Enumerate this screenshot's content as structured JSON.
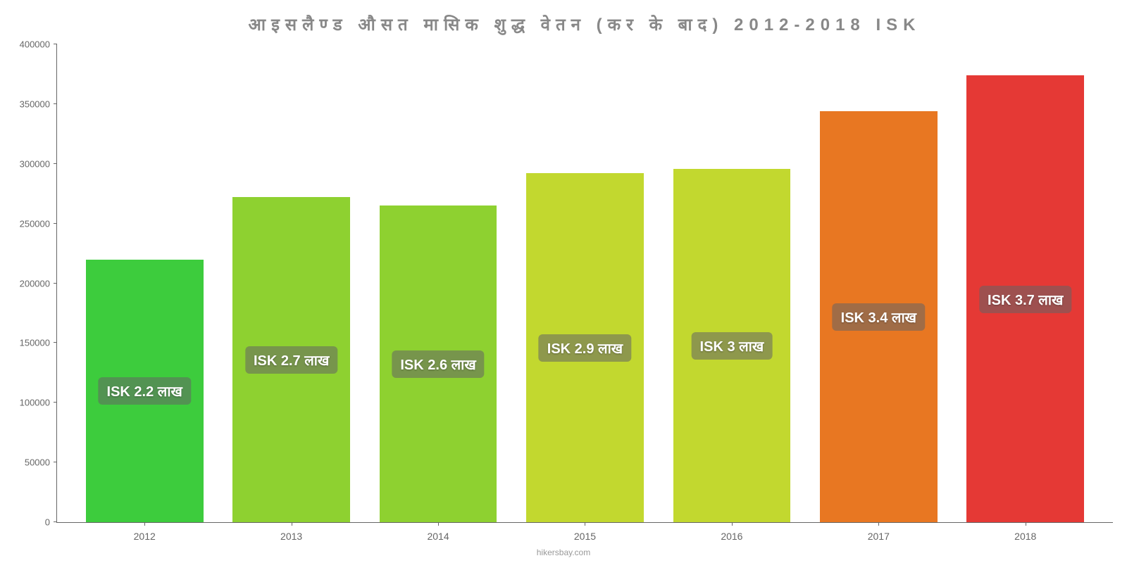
{
  "chart": {
    "type": "bar",
    "title": "आइसलैण्ड  औसत  मासिक  शुद्ध  वेतन  (कर  के  बाद) 2012-2018 ISK",
    "title_color": "#888888",
    "title_fontsize": 24,
    "background_color": "#ffffff",
    "axis_color": "#666666",
    "label_color": "#666666",
    "label_fontsize": 14,
    "ylim_max": 400000,
    "ylim_min": 0,
    "ytick_step": 50000,
    "y_ticks": [
      "0",
      "50000",
      "100000",
      "150000",
      "200000",
      "250000",
      "300000",
      "350000",
      "400000"
    ],
    "categories": [
      "2012",
      "2013",
      "2014",
      "2015",
      "2016",
      "2017",
      "2018"
    ],
    "values": [
      220000,
      272000,
      265000,
      292000,
      296000,
      344000,
      374000
    ],
    "bar_colors": [
      "#3dcc3d",
      "#8ed130",
      "#8ed130",
      "#c2d82f",
      "#c2d82f",
      "#e87722",
      "#e53935"
    ],
    "bar_labels": [
      "ISK 2.2 लाख",
      "ISK 2.7 लाख",
      "ISK 2.6 लाख",
      "ISK 2.9 लाख",
      "ISK 3 लाख",
      "ISK 3.4 लाख",
      "ISK 3.7 लाख"
    ],
    "bar_label_bg": "rgba(100,100,100,0.55)",
    "bar_label_color": "#ffffff",
    "bar_label_fontsize": 20,
    "bar_width_pct": 80,
    "attribution": "hikersbay.com",
    "attribution_color": "#999999"
  }
}
